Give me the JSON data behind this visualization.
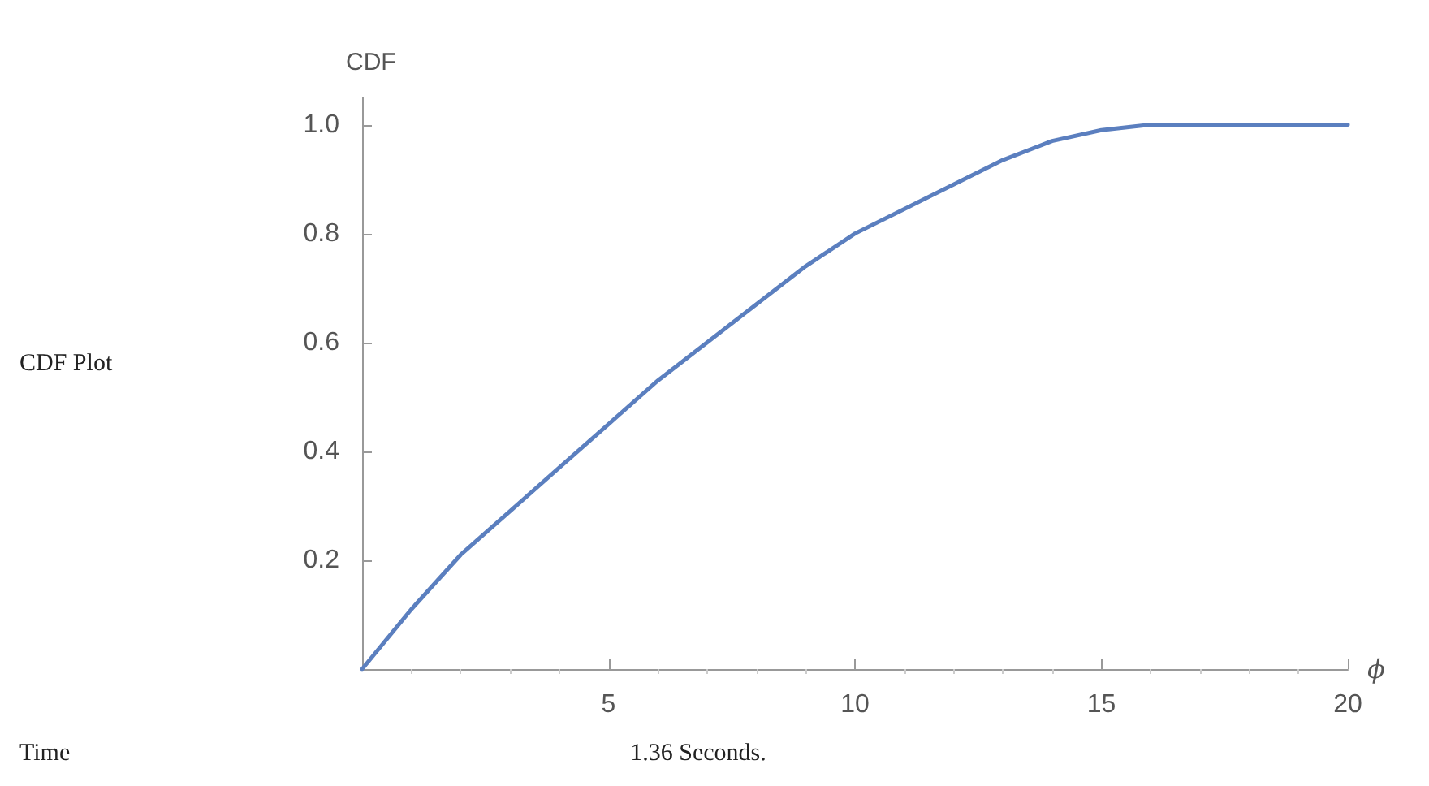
{
  "chart_data": {
    "type": "line",
    "xlabel": "ϕ",
    "ylabel": "CDF",
    "annotations": [
      "CDF Plot",
      "Time",
      "1.36 Seconds."
    ],
    "xlim": [
      0,
      20
    ],
    "xticks": [
      5,
      10,
      15,
      20
    ],
    "ylim": [
      0,
      1.05
    ],
    "yticks": [
      0.2,
      0.4,
      0.6,
      0.8,
      {
        "value": 1,
        "label": "1.0"
      }
    ],
    "grid": false,
    "marker": "none",
    "line_style": "solid",
    "series": [
      {
        "color": "#5b7fbf",
        "x": [
          0,
          1,
          2,
          3,
          4,
          5,
          6,
          7,
          8,
          9,
          10,
          11,
          12,
          13,
          14,
          15,
          16,
          17,
          18,
          19,
          20
        ],
        "values": [
          0,
          0.11,
          0.21,
          0.29,
          0.37,
          0.45,
          0.53,
          0.6,
          0.67,
          0.74,
          0.8,
          0.845,
          0.89,
          0.935,
          0.97,
          0.99,
          1.0,
          1.0,
          1.0,
          1.0,
          1.0
        ]
      }
    ]
  }
}
